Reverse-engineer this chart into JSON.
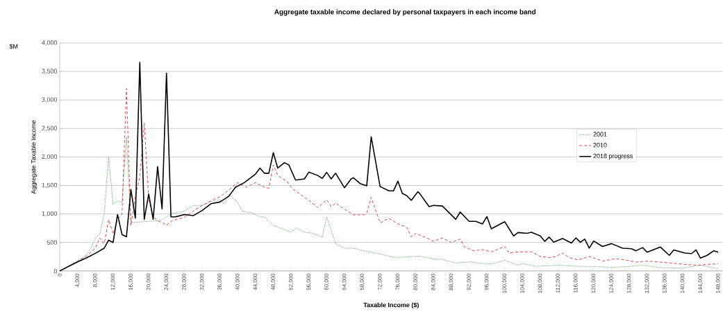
{
  "chart_data": {
    "type": "line",
    "title": "Aggregate taxable income declared by personal taxpayers in each income band",
    "xlabel": "Taxable Income ($)",
    "ylabel": "Aggregate Taxable Income",
    "annotations": [
      "$M"
    ],
    "xlim": [
      0,
      149000
    ],
    "ylim": [
      0,
      4000
    ],
    "xticks": [
      0,
      {
        "value": 4000,
        "label": "4,000"
      },
      {
        "value": 8000,
        "label": "8,000"
      },
      {
        "value": 12000,
        "label": "12,000"
      },
      {
        "value": 16000,
        "label": "16,000"
      },
      {
        "value": 20000,
        "label": "20,000"
      },
      {
        "value": 24000,
        "label": "24,000"
      },
      {
        "value": 28000,
        "label": "28,000"
      },
      {
        "value": 32000,
        "label": "32,000"
      },
      {
        "value": 36000,
        "label": "36,000"
      },
      {
        "value": 40000,
        "label": "40,000"
      },
      {
        "value": 44000,
        "label": "44,000"
      },
      {
        "value": 48000,
        "label": "48,000"
      },
      {
        "value": 52000,
        "label": "52,000"
      },
      {
        "value": 56000,
        "label": "56,000"
      },
      {
        "value": 60000,
        "label": "60,000"
      },
      {
        "value": 64000,
        "label": "64,000"
      },
      {
        "value": 68000,
        "label": "68,000"
      },
      {
        "value": 72000,
        "label": "72,000"
      },
      {
        "value": 76000,
        "label": "76,000"
      },
      {
        "value": 80000,
        "label": "80,000"
      },
      {
        "value": 84000,
        "label": "84,000"
      },
      {
        "value": 88000,
        "label": "88,000"
      },
      {
        "value": 92000,
        "label": "92,000"
      },
      {
        "value": 96000,
        "label": "96,000"
      },
      {
        "value": 100000,
        "label": "100,000"
      },
      {
        "value": 104000,
        "label": "104,000"
      },
      {
        "value": 108000,
        "label": "108,000"
      },
      {
        "value": 112000,
        "label": "112,000"
      },
      {
        "value": 116000,
        "label": "116,000"
      },
      {
        "value": 120000,
        "label": "120,000"
      },
      {
        "value": 124000,
        "label": "124,000"
      },
      {
        "value": 128000,
        "label": "128,000"
      },
      {
        "value": 132000,
        "label": "132,000"
      },
      {
        "value": 136000,
        "label": "136,000"
      },
      {
        "value": 140000,
        "label": "140,000"
      },
      {
        "value": 144000,
        "label": "144,000"
      },
      {
        "value": 148000,
        "label": "148,000"
      }
    ],
    "yticks": [
      0,
      500,
      {
        "value": 1000,
        "label": "1,000"
      },
      {
        "value": 1500,
        "label": "1,500"
      },
      {
        "value": 2000,
        "label": "2,000"
      },
      {
        "value": 2500,
        "label": "2,500"
      },
      {
        "value": 3000,
        "label": "3,000"
      },
      {
        "value": 3500,
        "label": "3,500"
      },
      {
        "value": 4000,
        "label": "4,000"
      }
    ],
    "grid": "y",
    "legend": "right",
    "marker": "none",
    "series": [
      {
        "name": "2001",
        "color": "#5aa05a",
        "line_style": "dotted",
        "x": [
          0,
          2000,
          4000,
          6000,
          7000,
          8000,
          9000,
          10000,
          11000,
          12000,
          13000,
          14000,
          15000,
          16000,
          18000,
          20000,
          22000,
          23000,
          24000,
          25000,
          26000,
          28000,
          30000,
          32000,
          34000,
          36000,
          37000,
          38000,
          40000,
          41000,
          43000,
          45000,
          46000,
          48000,
          50000,
          52000,
          53000,
          55000,
          57000,
          59000,
          60000,
          62000,
          64000,
          66000,
          68000,
          72000,
          75000,
          77000,
          81000,
          84000,
          86000,
          89000,
          92000,
          94000,
          97000,
          100000,
          103000,
          104000,
          107000,
          112000,
          117000,
          121000,
          123000,
          128000,
          131000,
          135000,
          140000,
          144000,
          148000
        ],
        "values": [
          0,
          90,
          180,
          280,
          400,
          580,
          650,
          1000,
          2000,
          1170,
          1230,
          1200,
          2350,
          850,
          860,
          870,
          880,
          900,
          950,
          1000,
          1020,
          1050,
          1150,
          1150,
          1220,
          1250,
          1180,
          1350,
          1200,
          1050,
          1020,
          950,
          950,
          800,
          740,
          680,
          760,
          680,
          660,
          590,
          950,
          480,
          400,
          400,
          360,
          300,
          240,
          240,
          260,
          210,
          200,
          140,
          160,
          140,
          120,
          190,
          100,
          130,
          80,
          100,
          80,
          80,
          60,
          80,
          100,
          60,
          50,
          100,
          40
        ]
      },
      {
        "name": "2010",
        "color": "#e03030",
        "line_style": "dashed",
        "x": [
          0,
          2000,
          4000,
          6000,
          8000,
          9000,
          10000,
          11000,
          12000,
          13000,
          14000,
          15000,
          16000,
          17000,
          18000,
          19000,
          20000,
          21000,
          22000,
          23000,
          24000,
          25000,
          26000,
          28000,
          30000,
          32000,
          34000,
          36000,
          38000,
          40000,
          42000,
          44000,
          46000,
          47000,
          48000,
          49000,
          51000,
          52500,
          54000,
          55000,
          56500,
          58000,
          60000,
          61000,
          62000,
          64000,
          66000,
          68500,
          69000,
          70000,
          72000,
          74000,
          76000,
          78000,
          79000,
          80000,
          82500,
          84000,
          86000,
          88000,
          90000,
          91000,
          93000,
          95000,
          97000,
          100000,
          101000,
          103000,
          106000,
          108000,
          110000,
          111500,
          113000,
          114500,
          116500,
          119000,
          122000,
          125000,
          127000,
          129500,
          132000,
          135000,
          138000,
          140500,
          143500,
          145500,
          148000
        ],
        "values": [
          0,
          80,
          170,
          260,
          400,
          580,
          480,
          900,
          650,
          900,
          1000,
          3200,
          800,
          1300,
          1650,
          2600,
          1250,
          950,
          880,
          850,
          800,
          870,
          900,
          940,
          1050,
          1150,
          1230,
          1300,
          1420,
          1550,
          1470,
          1550,
          1470,
          1450,
          1860,
          1675,
          1575,
          1430,
          1350,
          1290,
          1210,
          1110,
          1250,
          1130,
          1190,
          1085,
          985,
          985,
          1025,
          1290,
          845,
          925,
          825,
          765,
          600,
          660,
          580,
          520,
          580,
          500,
          560,
          420,
          355,
          375,
          335,
          430,
          315,
          335,
          335,
          255,
          235,
          255,
          315,
          235,
          195,
          255,
          175,
          215,
          195,
          155,
          175,
          155,
          135,
          115,
          100,
          115,
          125
        ]
      },
      {
        "name": "2018 progress",
        "color": "#000000",
        "line_style": "solid",
        "x": [
          0,
          2000,
          4000,
          6000,
          8000,
          10000,
          11000,
          12000,
          13000,
          14000,
          15000,
          16000,
          17000,
          18000,
          19000,
          20000,
          21000,
          22000,
          23000,
          24000,
          25000,
          26000,
          28000,
          30000,
          32000,
          34000,
          36000,
          38000,
          39500,
          41500,
          44000,
          45000,
          46000,
          47000,
          48000,
          49000,
          50500,
          51500,
          53000,
          55000,
          56000,
          58000,
          59000,
          60000,
          61000,
          62000,
          64000,
          65500,
          66000,
          67500,
          69000,
          70000,
          72000,
          74000,
          75000,
          76000,
          77000,
          78000,
          79000,
          80500,
          81000,
          83000,
          84000,
          86000,
          88500,
          89000,
          90000,
          92000,
          93500,
          95000,
          96000,
          97000,
          100000,
          102000,
          103000,
          105000,
          106000,
          108000,
          109000,
          110000,
          111000,
          113000,
          115000,
          116000,
          117000,
          118000,
          119000,
          120000,
          122000,
          124000,
          126500,
          128500,
          129500,
          131000,
          132000,
          135000,
          137000,
          138000,
          140500,
          142000,
          143000,
          144000,
          145500,
          147000,
          148000
        ],
        "values": [
          0,
          80,
          160,
          230,
          310,
          400,
          540,
          500,
          990,
          640,
          600,
          1430,
          925,
          3660,
          905,
          1350,
          905,
          1830,
          1090,
          3470,
          950,
          950,
          990,
          970,
          1060,
          1180,
          1210,
          1310,
          1470,
          1550,
          1700,
          1805,
          1715,
          1715,
          2075,
          1805,
          1900,
          1860,
          1595,
          1615,
          1735,
          1675,
          1625,
          1730,
          1615,
          1715,
          1460,
          1615,
          1635,
          1535,
          1495,
          2355,
          1480,
          1405,
          1405,
          1575,
          1360,
          1320,
          1240,
          1390,
          1350,
          1130,
          1150,
          1140,
          945,
          905,
          1035,
          870,
          870,
          825,
          955,
          740,
          865,
          615,
          675,
          660,
          680,
          615,
          520,
          595,
          505,
          570,
          490,
          580,
          505,
          560,
          400,
          525,
          430,
          480,
          400,
          390,
          355,
          410,
          330,
          420,
          275,
          370,
          315,
          305,
          370,
          225,
          275,
          355,
          330
        ]
      }
    ]
  }
}
